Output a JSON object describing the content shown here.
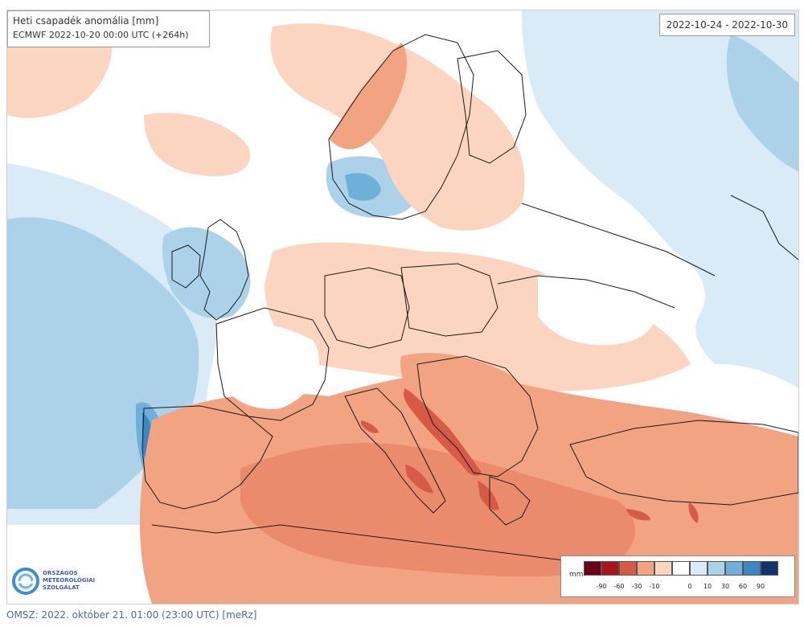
{
  "map": {
    "title": "Heti csapadék anomália [mm]",
    "model_run": "ECMWF 2022-10-20 00:00 UTC (+264h)",
    "date_range": "2022-10-24 - 2022-10-30",
    "colors": {
      "neg90": "#6b0016",
      "neg60": "#a8141e",
      "neg30": "#d65a45",
      "neg10": "#f2a381",
      "neg0": "#fbd5bf",
      "zero": "#ffffff",
      "pos0": "#d9ebf6",
      "pos10": "#acd2ea",
      "pos30": "#6fb0d9",
      "pos60": "#3c86c4",
      "pos90": "#13336e",
      "border": "#1a1a1a"
    }
  },
  "legend": {
    "unit": "mm",
    "ticks": [
      "-90",
      "-60",
      "-30",
      "-10",
      "0",
      "10",
      "30",
      "60",
      "90"
    ]
  },
  "logo": {
    "line1": "ORSZÁGOS",
    "line2": "METEOROLÓGIAI",
    "line3": "SZOLGÁLAT"
  },
  "footer": {
    "text": "OMSZ: 2022. október 21. 01:00 (23:00  UTC)  [meRz]"
  }
}
